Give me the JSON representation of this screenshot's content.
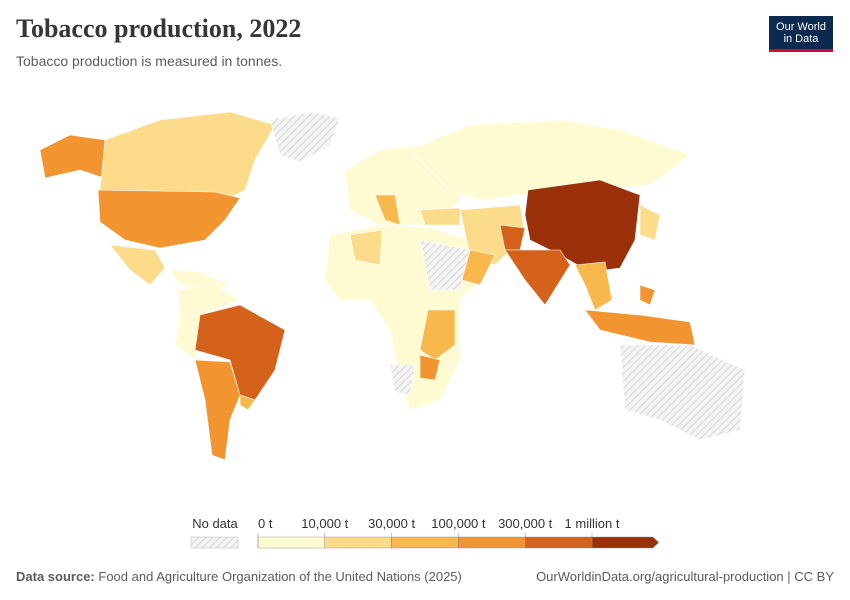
{
  "header": {
    "title": "Tobacco production, 2022",
    "subtitle": "Tobacco production is measured in tonnes.",
    "logo": [
      "Our World",
      "in Data"
    ]
  },
  "legend": {
    "no_data": "No data",
    "bins": [
      {
        "value": 0,
        "label": "0 t"
      },
      {
        "value": 10000,
        "label": "10,000 t"
      },
      {
        "value": 30000,
        "label": "30,000 t"
      },
      {
        "value": 100000,
        "label": "100,000 t"
      },
      {
        "value": 300000,
        "label": "300,000 t"
      },
      {
        "value": 1000000,
        "label": "1 million t"
      }
    ],
    "colors": [
      "#fefbd2",
      "#fcdc8a",
      "#f8b84c",
      "#f29530",
      "#d4621b",
      "#9b310a"
    ]
  },
  "footer": {
    "source_label": "Data source:",
    "source": "Food and Agriculture Organization of the United Nations (2025)",
    "url": "OurWorldinData.org/agricultural-production | CC BY"
  }
}
